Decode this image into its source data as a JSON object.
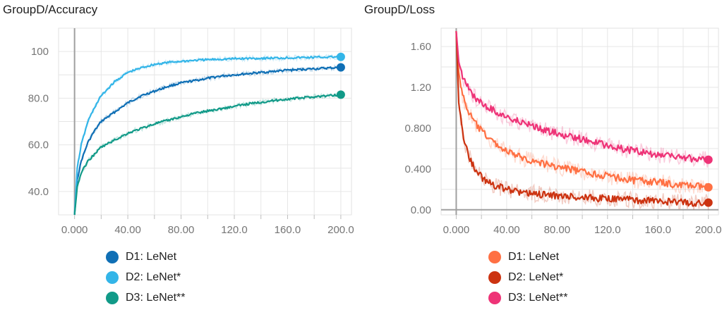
{
  "chart_data": [
    {
      "type": "line",
      "title": "GroupD/Accuracy",
      "x": [
        0,
        2,
        5,
        10,
        15,
        20,
        30,
        40,
        50,
        60,
        70,
        80,
        90,
        100,
        110,
        120,
        130,
        140,
        150,
        160,
        170,
        180,
        190,
        200
      ],
      "xticks": [
        "0.000",
        "40.00",
        "80.00",
        "120.0",
        "160.0",
        "200.0"
      ],
      "xtick_values": [
        0,
        40,
        80,
        120,
        160,
        200
      ],
      "yticks": [
        "40.0",
        "60.0",
        "80.0",
        "100"
      ],
      "ytick_values": [
        40,
        60,
        80,
        100
      ],
      "xlim": [
        -12,
        208
      ],
      "ylim": [
        30,
        110
      ],
      "grid": true,
      "series": [
        {
          "name": "D1: LeNet",
          "color": "#0f6fb5",
          "values": [
            30,
            45,
            53,
            61,
            66,
            70,
            74,
            78,
            81,
            83,
            85,
            86.5,
            87.5,
            88.5,
            89.5,
            90,
            90.5,
            91,
            91.5,
            92,
            92.3,
            92.6,
            92.9,
            93.2
          ]
        },
        {
          "name": "D2: LeNet*",
          "color": "#33b5e8",
          "values": [
            30,
            50,
            60,
            70,
            76,
            81,
            87,
            91,
            93,
            94.5,
            95.3,
            95.8,
            96.2,
            96.5,
            96.7,
            96.9,
            97,
            97.1,
            97.2,
            97.3,
            97.4,
            97.5,
            97.6,
            97.7
          ]
        },
        {
          "name": "D3: LeNet**",
          "color": "#119a88",
          "values": [
            30,
            42,
            48,
            53,
            56,
            59,
            62,
            65,
            67,
            69,
            70.5,
            72,
            73.5,
            74.5,
            75.5,
            76.5,
            77.5,
            78.3,
            79,
            79.6,
            80.1,
            80.6,
            81,
            81.5
          ]
        }
      ]
    },
    {
      "type": "line",
      "title": "GroupD/Loss",
      "x": [
        0,
        2,
        5,
        10,
        15,
        20,
        30,
        40,
        50,
        60,
        70,
        80,
        90,
        100,
        110,
        120,
        130,
        140,
        150,
        160,
        170,
        180,
        190,
        200
      ],
      "xticks": [
        "0.000",
        "40.00",
        "80.00",
        "120.0",
        "160.0",
        "200.0"
      ],
      "xtick_values": [
        0,
        40,
        80,
        120,
        160,
        200
      ],
      "yticks": [
        "0.00",
        "0.400",
        "0.800",
        "1.20",
        "1.60"
      ],
      "ytick_values": [
        0,
        0.4,
        0.8,
        1.2,
        1.6
      ],
      "xlim": [
        -12,
        208
      ],
      "ylim": [
        -0.05,
        1.78
      ],
      "grid": true,
      "series": [
        {
          "name": "D1: LeNet",
          "color": "#ff7043",
          "values": [
            1.75,
            1.35,
            1.12,
            0.95,
            0.85,
            0.77,
            0.66,
            0.57,
            0.52,
            0.48,
            0.45,
            0.42,
            0.4,
            0.37,
            0.35,
            0.33,
            0.31,
            0.29,
            0.28,
            0.27,
            0.25,
            0.24,
            0.23,
            0.22
          ]
        },
        {
          "name": "D2: LeNet*",
          "color": "#cc3311",
          "values": [
            1.75,
            1.05,
            0.75,
            0.52,
            0.4,
            0.32,
            0.24,
            0.2,
            0.17,
            0.16,
            0.15,
            0.14,
            0.13,
            0.12,
            0.115,
            0.11,
            0.1,
            0.095,
            0.09,
            0.085,
            0.08,
            0.075,
            0.07,
            0.07
          ]
        },
        {
          "name": "D3: LeNet**",
          "color": "#ee3377",
          "values": [
            1.75,
            1.45,
            1.3,
            1.18,
            1.1,
            1.04,
            0.97,
            0.91,
            0.86,
            0.82,
            0.78,
            0.75,
            0.72,
            0.69,
            0.66,
            0.63,
            0.6,
            0.58,
            0.56,
            0.54,
            0.52,
            0.51,
            0.5,
            0.49
          ]
        }
      ]
    }
  ]
}
